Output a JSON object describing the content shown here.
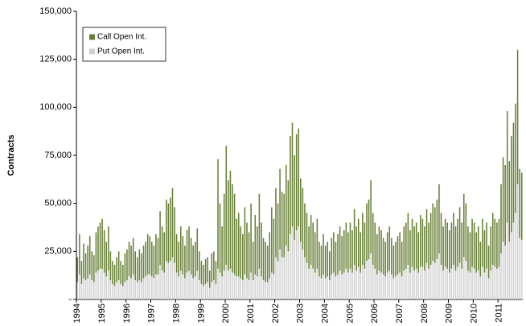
{
  "chart_data": {
    "type": "stacked_bar",
    "y_label": "Contracts",
    "categories": [
      "1994",
      null,
      null,
      null,
      null,
      null,
      null,
      null,
      null,
      null,
      null,
      null,
      "1995",
      null,
      null,
      null,
      null,
      null,
      null,
      null,
      null,
      null,
      null,
      null,
      "1996",
      null,
      null,
      null,
      null,
      null,
      null,
      null,
      null,
      null,
      null,
      null,
      "1997",
      null,
      null,
      null,
      null,
      null,
      null,
      null,
      null,
      null,
      null,
      null,
      "1998",
      null,
      null,
      null,
      null,
      null,
      null,
      null,
      null,
      null,
      null,
      null,
      "1999",
      null,
      null,
      null,
      null,
      null,
      null,
      null,
      null,
      null,
      null,
      null,
      "2000",
      null,
      null,
      null,
      null,
      null,
      null,
      null,
      null,
      null,
      null,
      null,
      "2001",
      null,
      null,
      null,
      null,
      null,
      null,
      null,
      null,
      null,
      null,
      null,
      "2002",
      null,
      null,
      null,
      null,
      null,
      null,
      null,
      null,
      null,
      null,
      null,
      "2003",
      null,
      null,
      null,
      null,
      null,
      null,
      null,
      null,
      null,
      null,
      null,
      "2004",
      null,
      null,
      null,
      null,
      null,
      null,
      null,
      null,
      null,
      null,
      null,
      "2005",
      null,
      null,
      null,
      null,
      null,
      null,
      null,
      null,
      null,
      null,
      null,
      "2006",
      null,
      null,
      null,
      null,
      null,
      null,
      null,
      null,
      null,
      null,
      null,
      "2007",
      null,
      null,
      null,
      null,
      null,
      null,
      null,
      null,
      null,
      null,
      null,
      "2008",
      null,
      null,
      null,
      null,
      null,
      null,
      null,
      null,
      null,
      null,
      null,
      "2009",
      null,
      null,
      null,
      null,
      null,
      null,
      null,
      null,
      null,
      null,
      null,
      "2010",
      null,
      null,
      null,
      null,
      null,
      null,
      null,
      null,
      null,
      null,
      null,
      "2011",
      null,
      null,
      null,
      null,
      null,
      null,
      null,
      null,
      null,
      null,
      null
    ],
    "series": [
      {
        "name": "Call Open Int.",
        "color": "#667f35",
        "values": [
          13000,
          21000,
          12000,
          18000,
          14000,
          17000,
          20000,
          15000,
          14000,
          21000,
          23000,
          24000,
          26000,
          22000,
          18000,
          23000,
          15000,
          12000,
          11000,
          13000,
          15000,
          12000,
          11000,
          15000,
          16000,
          18000,
          17000,
          19000,
          15000,
          13000,
          16000,
          15000,
          17000,
          18000,
          21000,
          20000,
          18000,
          17000,
          21000,
          19000,
          28000,
          23000,
          21000,
          32000,
          31000,
          33000,
          36000,
          29000,
          20000,
          18000,
          23000,
          20000,
          17000,
          22000,
          23000,
          19000,
          17000,
          18000,
          22000,
          15000,
          12000,
          11000,
          13000,
          13000,
          9000,
          15000,
          15000,
          12000,
          57000,
          36000,
          26000,
          40000,
          62000,
          47000,
          51000,
          46000,
          42000,
          30000,
          33000,
          27000,
          24000,
          35000,
          29000,
          25000,
          36000,
          20000,
          31000,
          26000,
          39000,
          28000,
          22000,
          21000,
          19000,
          24000,
          34000,
          29000,
          36000,
          30000,
          42000,
          34000,
          33000,
          42000,
          37000,
          51000,
          54000,
          44000,
          50000,
          51000,
          33000,
          32000,
          28000,
          26000,
          22000,
          26000,
          24000,
          21000,
          26000,
          18000,
          17000,
          21000,
          17000,
          18000,
          15000,
          19000,
          21000,
          18000,
          21000,
          23000,
          20000,
          22000,
          24000,
          21000,
          24000,
          22000,
          29000,
          23000,
          25000,
          21000,
          27000,
          24000,
          30000,
          31000,
          38000,
          27000,
          24000,
          21000,
          23000,
          22000,
          19000,
          18000,
          21000,
          23000,
          19000,
          17000,
          18000,
          20000,
          21000,
          18000,
          23000,
          24000,
          27000,
          22000,
          25000,
          23000,
          24000,
          21000,
          27000,
          25000,
          23000,
          28000,
          24000,
          27000,
          30000,
          29000,
          31000,
          36000,
          27000,
          23000,
          25000,
          24000,
          22000,
          24000,
          27000,
          23000,
          25000,
          29000,
          24000,
          33000,
          30000,
          23000,
          21000,
          25000,
          24000,
          21000,
          23000,
          18000,
          25000,
          22000,
          24000,
          17000,
          23000,
          27000,
          25000,
          24000,
          25000,
          36000,
          44000,
          42000,
          58000,
          42000,
          50000,
          52000,
          57000,
          70000,
          36000,
          35000
        ]
      },
      {
        "name": "Put Open Int.",
        "color": "#d2d2d2",
        "values": [
          9000,
          13000,
          8000,
          11000,
          10000,
          11000,
          13000,
          10000,
          9000,
          14000,
          15000,
          16000,
          16000,
          14000,
          12000,
          15000,
          10000,
          8000,
          7000,
          9000,
          10000,
          8000,
          7000,
          9000,
          10000,
          12000,
          11000,
          13000,
          10000,
          9000,
          10000,
          9000,
          11000,
          12000,
          13000,
          13000,
          12000,
          11000,
          13000,
          13000,
          18000,
          15000,
          14000,
          20000,
          19000,
          20000,
          22000,
          19000,
          14000,
          12000,
          15000,
          13000,
          11000,
          14000,
          15000,
          13000,
          11000,
          12000,
          15000,
          10000,
          8000,
          7000,
          8000,
          9000,
          6000,
          9000,
          10000,
          8000,
          16000,
          14000,
          12000,
          15000,
          18000,
          15000,
          16000,
          14000,
          13000,
          12000,
          12000,
          11000,
          10000,
          13000,
          11000,
          10000,
          14000,
          10000,
          13000,
          12000,
          16000,
          12000,
          10000,
          9000,
          9000,
          11000,
          14000,
          13000,
          22000,
          20000,
          26000,
          22000,
          22000,
          28000,
          25000,
          34000,
          38000,
          31000,
          36000,
          38000,
          30000,
          26000,
          22000,
          19000,
          16000,
          18000,
          16000,
          14000,
          16000,
          12000,
          11000,
          13000,
          11000,
          12000,
          10000,
          13000,
          14000,
          12000,
          13000,
          15000,
          13000,
          14000,
          16000,
          14000,
          16000,
          14000,
          18000,
          15000,
          17000,
          14000,
          18000,
          16000,
          20000,
          21000,
          24000,
          18000,
          16000,
          13000,
          15000,
          14000,
          13000,
          12000,
          14000,
          15000,
          13000,
          11000,
          12000,
          13000,
          14000,
          12000,
          15000,
          16000,
          18000,
          14000,
          17000,
          15000,
          16000,
          14000,
          17000,
          17000,
          15000,
          19000,
          16000,
          18000,
          20000,
          19000,
          21000,
          24000,
          18000,
          15000,
          17000,
          16000,
          14000,
          16000,
          18000,
          15000,
          17000,
          19000,
          16000,
          22000,
          20000,
          15000,
          14000,
          17000,
          16000,
          14000,
          15000,
          12000,
          17000,
          14000,
          16000,
          11000,
          15000,
          18000,
          17000,
          16000,
          17000,
          24000,
          30000,
          28000,
          40000,
          30000,
          35000,
          40000,
          45000,
          60000,
          32000,
          31000
        ]
      }
    ],
    "ylim": [
      0,
      150000
    ],
    "yticks": [
      {
        "value": 0,
        "label": "-"
      },
      {
        "value": 25000,
        "label": "25,000"
      },
      {
        "value": 50000,
        "label": "50,000"
      },
      {
        "value": 75000,
        "label": "75,000"
      },
      {
        "value": 100000,
        "label": "100,000"
      },
      {
        "value": 125000,
        "label": "125,000"
      },
      {
        "value": 150000,
        "label": "150,000"
      }
    ],
    "legend": "top-left"
  }
}
